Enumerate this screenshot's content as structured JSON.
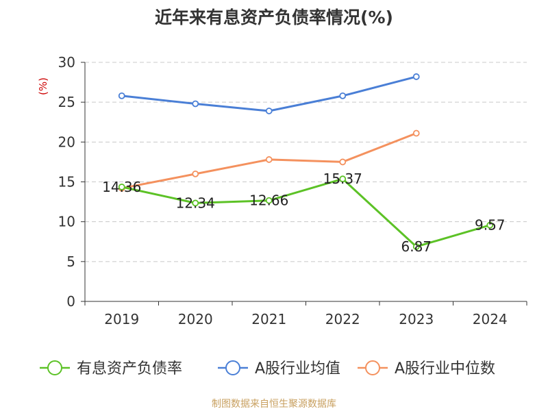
{
  "chart_data": {
    "type": "line",
    "title": "近年来有息资产负债率情况(%)",
    "ylabel": "(%)",
    "categories": [
      "2019",
      "2020",
      "2021",
      "2022",
      "2023",
      "2024"
    ],
    "ylim": [
      0,
      30
    ],
    "yticks": [
      0,
      5,
      10,
      15,
      20,
      25,
      30
    ],
    "grid": true,
    "legend_position": "bottom",
    "series": [
      {
        "name": "有息资产负债率",
        "color": "#5cc226",
        "values": [
          14.36,
          12.34,
          12.66,
          15.37,
          6.87,
          9.57
        ],
        "labels": [
          "14.36",
          "12.34",
          "12.66",
          "15.37",
          "6.87",
          "9.57"
        ]
      },
      {
        "name": "A股行业均值",
        "color": "#4a7fd6",
        "values": [
          25.8,
          24.8,
          23.9,
          25.8,
          28.2,
          null
        ]
      },
      {
        "name": "A股行业中位数",
        "color": "#f4915e",
        "values": [
          14.2,
          16.0,
          17.8,
          17.5,
          21.1,
          null
        ]
      }
    ],
    "source": "制图数据来自恒生聚源数据库"
  }
}
